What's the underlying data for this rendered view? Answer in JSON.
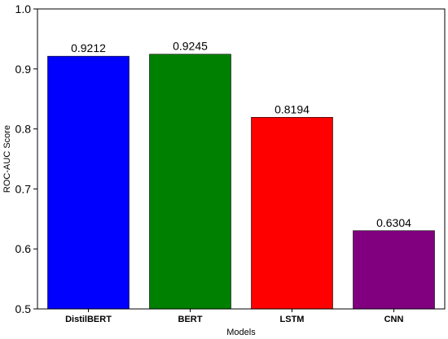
{
  "chart_data": {
    "type": "bar",
    "categories": [
      "DistilBERT",
      "BERT",
      "LSTM",
      "CNN"
    ],
    "values": [
      0.9212,
      0.9245,
      0.8194,
      0.6304
    ],
    "data_labels": [
      "0.9212",
      "0.9245",
      "0.8194",
      "0.6304"
    ],
    "colors": [
      "#0000ff",
      "#008000",
      "#ff0000",
      "#800080"
    ],
    "title": "",
    "xlabel": "Models",
    "ylabel": "ROC-AUC Score",
    "ylim": [
      0.5,
      1.0
    ],
    "yticks": [
      0.5,
      0.6,
      0.7,
      0.8,
      0.9,
      1.0
    ],
    "ytick_labels": [
      "0.5",
      "0.6",
      "0.7",
      "0.8",
      "0.9",
      "1.0"
    ],
    "grid": false,
    "legend": "none"
  }
}
